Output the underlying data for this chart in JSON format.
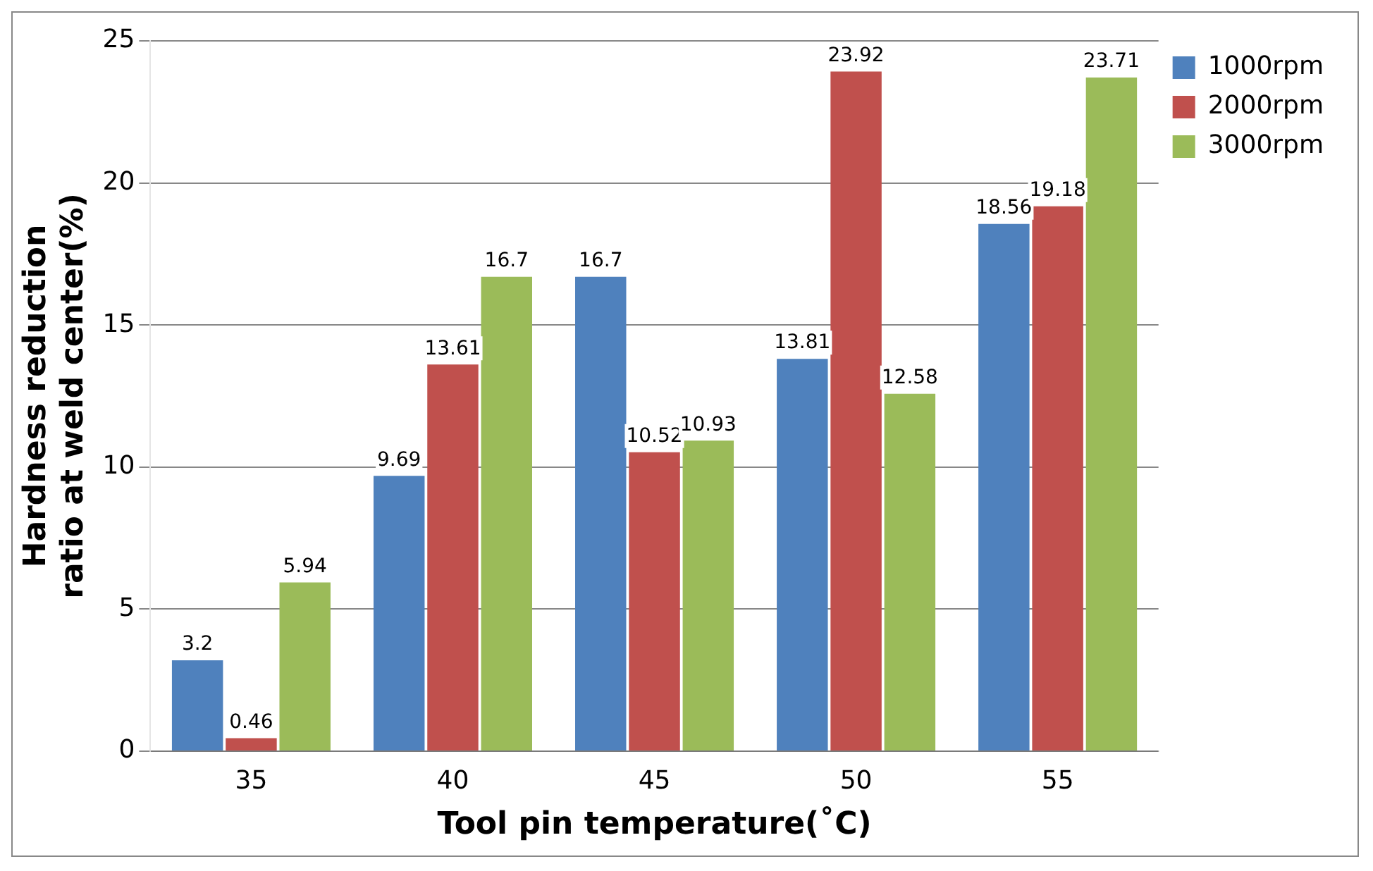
{
  "chart_data": {
    "type": "bar",
    "xlabel": "Tool pin temperature(˚C)",
    "ylabel": "Hardness reduction ratio at weld center(%)",
    "categories": [
      "35",
      "40",
      "45",
      "50",
      "55"
    ],
    "series": [
      {
        "name": "1000rpm",
        "color": "#4f81bd",
        "values": [
          3.2,
          9.69,
          16.7,
          13.81,
          18.56
        ]
      },
      {
        "name": "2000rpm",
        "color": "#c0504d",
        "values": [
          0.46,
          13.61,
          10.52,
          23.92,
          19.18
        ]
      },
      {
        "name": "3000rpm",
        "color": "#9bbb59",
        "values": [
          5.94,
          16.7,
          10.93,
          12.58,
          23.71
        ]
      }
    ],
    "ylim": [
      0,
      25
    ],
    "yticks": [
      0,
      5,
      10,
      15,
      20,
      25
    ],
    "grid": "y",
    "legend": "right",
    "data_labels": true
  }
}
